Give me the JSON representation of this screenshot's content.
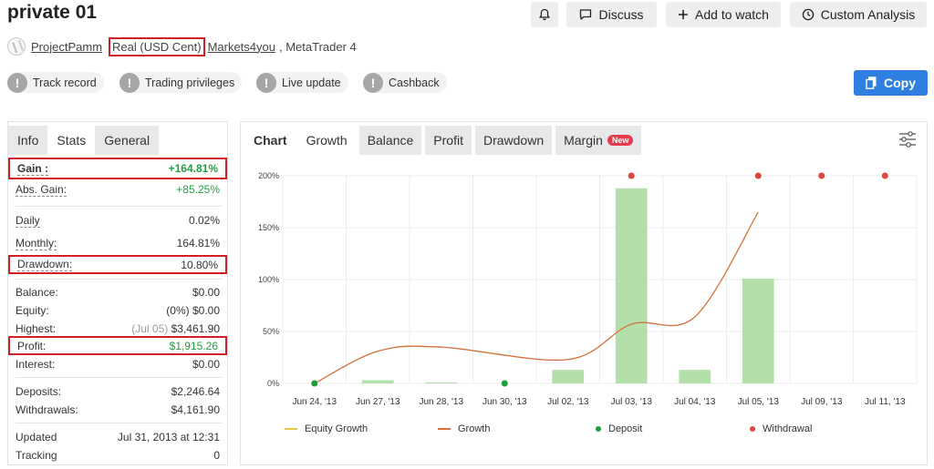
{
  "header": {
    "title": "private 01",
    "discuss_label": "Discuss",
    "watch_label": "Add to watch",
    "custom_label": "Custom Analysis"
  },
  "meta": {
    "owner": "ProjectPamm",
    "account_type": "Real (USD Cent)",
    "broker": "Markets4you",
    "platform_suffix": ", MetaTrader 4"
  },
  "badges": [
    {
      "label": "Track record",
      "icon": "exclamation-icon"
    },
    {
      "label": "Trading privileges",
      "icon": "exclamation-icon"
    },
    {
      "label": "Live update",
      "icon": "exclamation-icon"
    },
    {
      "label": "Cashback",
      "icon": "exclamation-icon"
    }
  ],
  "copy_label": "Copy",
  "left_tabs": [
    "Info",
    "Stats",
    "General"
  ],
  "stats": {
    "gain": {
      "label": "Gain :",
      "value": "+164.81%"
    },
    "abs_gain": {
      "label": "Abs. Gain:",
      "value": "+85.25%"
    },
    "daily": {
      "label": "Daily",
      "value": "0.02%"
    },
    "monthly": {
      "label": "Monthly:",
      "value": "164.81%"
    },
    "drawdown": {
      "label": "Drawdown:",
      "value": "10.80%"
    },
    "balance": {
      "label": "Balance:",
      "value": "$0.00"
    },
    "equity": {
      "label": "Equity:",
      "prefix": "(0%)",
      "value": "$0.00"
    },
    "highest": {
      "label": "Highest:",
      "date": "(Jul 05)",
      "value": "$3,461.90"
    },
    "profit": {
      "label": "Profit:",
      "value": "$1,915.26"
    },
    "interest": {
      "label": "Interest:",
      "value": "$0.00"
    },
    "deposits": {
      "label": "Deposits:",
      "value": "$2,246.64"
    },
    "withdrawals": {
      "label": "Withdrawals:",
      "value": "$4,161.90"
    },
    "updated": {
      "label": "Updated",
      "value": "Jul 31, 2013 at 12:31"
    },
    "tracking": {
      "label": "Tracking",
      "value": "0"
    }
  },
  "right_tabs": {
    "chart": "Chart",
    "items": [
      "Growth",
      "Balance",
      "Profit",
      "Drawdown",
      "Margin"
    ],
    "new_tag": "New"
  },
  "colors": {
    "accent": "#2f7fe0",
    "highlight": "#d21f26",
    "bar": "#b3e0aa",
    "growth_line": "#d4713b",
    "equity_line": "#e8c547",
    "deposit": "#1a9e3a",
    "withdrawal": "#e0443c",
    "positive": "#1f9f3f"
  },
  "chart_data": {
    "type": "bar",
    "categories": [
      "Jun 24, '13",
      "Jun 27, '13",
      "Jun 28, '13",
      "Jun 30, '13",
      "Jul 02, '13",
      "Jul 03, '13",
      "Jul 04, '13",
      "Jul 05, '13",
      "Jul 09, '13",
      "Jul 11, '13"
    ],
    "y_ticks": [
      "0%",
      "50%",
      "100%",
      "150%",
      "200%"
    ],
    "ylim": [
      0,
      200
    ],
    "grid": true,
    "legend_position": "bottom",
    "series": [
      {
        "name": "Equity Growth",
        "kind": "bar",
        "values": [
          0,
          3,
          1,
          0,
          13,
          188,
          13,
          101,
          0,
          0
        ]
      },
      {
        "name": "Growth",
        "kind": "line",
        "values": [
          0,
          31,
          35,
          null,
          23,
          57,
          64,
          165,
          null,
          null
        ]
      },
      {
        "name": "Deposit",
        "kind": "marker",
        "values": [
          0,
          null,
          null,
          0,
          null,
          null,
          null,
          null,
          null,
          null
        ]
      },
      {
        "name": "Withdrawal",
        "kind": "marker",
        "values": [
          null,
          null,
          null,
          null,
          null,
          200,
          null,
          200,
          200,
          200
        ]
      }
    ]
  }
}
